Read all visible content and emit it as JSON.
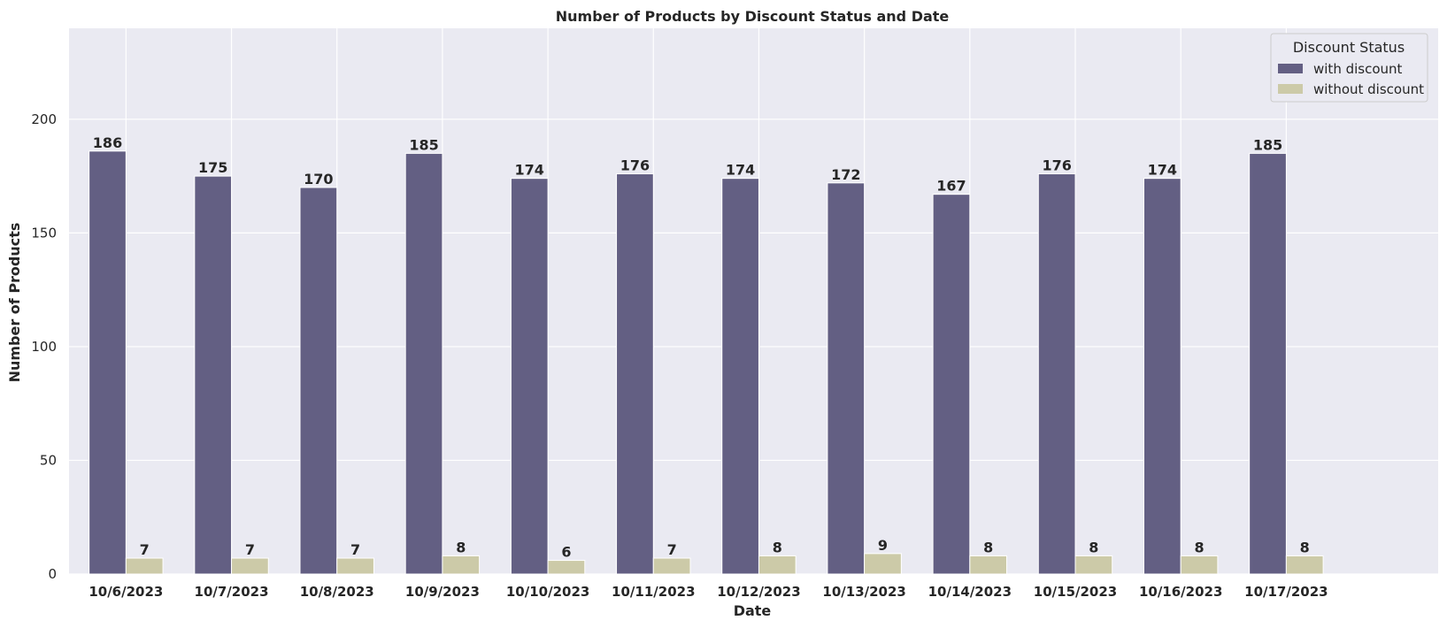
{
  "chart_data": {
    "type": "bar",
    "title": "Number of Products by Discount Status and Date",
    "xlabel": "Date",
    "ylabel": "Number of Products",
    "categories": [
      "10/6/2023",
      "10/7/2023",
      "10/8/2023",
      "10/9/2023",
      "10/10/2023",
      "10/11/2023",
      "10/12/2023",
      "10/13/2023",
      "10/14/2023",
      "10/15/2023",
      "10/16/2023",
      "10/17/2023"
    ],
    "series": [
      {
        "name": "with discount",
        "color": "#635f83",
        "values": [
          186,
          175,
          170,
          185,
          174,
          176,
          174,
          172,
          167,
          176,
          174,
          185
        ]
      },
      {
        "name": "without discount",
        "color": "#cccaa8",
        "values": [
          7,
          7,
          7,
          8,
          6,
          7,
          8,
          9,
          8,
          8,
          8,
          8
        ]
      }
    ],
    "ylim": [
      0,
      240
    ],
    "yticks": [
      0,
      50,
      100,
      150,
      200
    ],
    "grid": true,
    "legend": {
      "title": "Discount Status",
      "placement": "top-right"
    }
  }
}
